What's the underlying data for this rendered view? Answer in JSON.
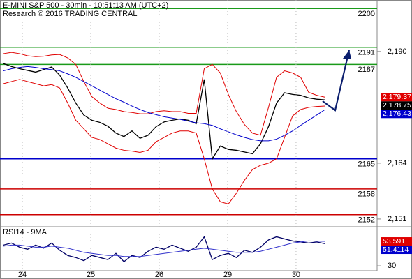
{
  "chart_data": [
    {
      "type": "line",
      "title": "E-MINI S&P 500 - 30min - 10:51:13 AM (UTC+2)",
      "subtitle": "Research © 2016 TRADING CENTRAL",
      "x": [
        0,
        1,
        2,
        3,
        4,
        5,
        6,
        7,
        8,
        9,
        10,
        11,
        12,
        13,
        14,
        15,
        16,
        17,
        18,
        19,
        20,
        21,
        22,
        23,
        24,
        25,
        26,
        27,
        28,
        29,
        30,
        31,
        32,
        33,
        34,
        35,
        36,
        37,
        38,
        39,
        40
      ],
      "xlim": [
        0,
        46
      ],
      "ylim": [
        2149.2,
        2202
      ],
      "yticks": [
        {
          "value": 2190,
          "label": "2,190"
        },
        {
          "value": 2164,
          "label": "2,164"
        },
        {
          "value": 2151,
          "label": "2,151"
        }
      ],
      "levels": [
        {
          "value": 2200,
          "color": "#1a9a1a"
        },
        {
          "value": 2191,
          "color": "#1a9a1a"
        },
        {
          "value": 2187,
          "color": "#1a9a1a"
        },
        {
          "value": 2165,
          "color": "#0000cc"
        },
        {
          "value": 2158,
          "color": "#cc0000"
        },
        {
          "value": 2152,
          "color": "#cc0000"
        }
      ],
      "series": [
        {
          "color": "#000000",
          "values": [
            2187.2,
            2186.5,
            2186.0,
            2185.6,
            2185.2,
            2185.8,
            2186.4,
            2184.5,
            2181.5,
            2178.0,
            2175.2,
            2174.0,
            2173.5,
            2172.6,
            2171.0,
            2170.2,
            2171.5,
            2169.8,
            2170.5,
            2172.5,
            2173.6,
            2174.0,
            2174.3,
            2174.0,
            2173.2,
            2183.5,
            2165.0,
            2168.0,
            2167.2,
            2167.0,
            2166.6,
            2166.2,
            2168.5,
            2172.5,
            2178.0,
            2180.4,
            2180.0,
            2179.8,
            2179.2,
            2178.9,
            2178.75
          ]
        },
        {
          "color": "#e00000",
          "values": [
            2189.5,
            2189.8,
            2189.5,
            2189.0,
            2188.8,
            2188.9,
            2189.2,
            2189.3,
            2188.5,
            2187.0,
            2183.0,
            2179.5,
            2178.0,
            2176.8,
            2176.5,
            2176.0,
            2175.8,
            2175.5,
            2175.5,
            2176.0,
            2176.2,
            2176.0,
            2176.0,
            2175.6,
            2175.6,
            2186.0,
            2187.0,
            2185.0,
            2180.0,
            2176.0,
            2173.0,
            2171.0,
            2170.5,
            2177.0,
            2184.0,
            2185.5,
            2185.0,
            2184.0,
            2180.5,
            2179.8,
            2179.37
          ]
        },
        {
          "color": "#e00000",
          "values": [
            2182.5,
            2183.0,
            2183.5,
            2183.0,
            2182.5,
            2182.0,
            2182.3,
            2181.5,
            2178.0,
            2174.0,
            2172.0,
            2170.0,
            2169.5,
            2168.5,
            2167.5,
            2167.0,
            2166.8,
            2166.5,
            2167.0,
            2169.0,
            2170.0,
            2171.0,
            2171.5,
            2171.5,
            2171.0,
            2165.0,
            2158.0,
            2155.0,
            2154.5,
            2157.0,
            2160.0,
            2162.5,
            2163.5,
            2164.0,
            2165.0,
            2170.0,
            2175.0,
            2176.5,
            2177.0,
            2177.2,
            2177.3
          ]
        },
        {
          "color": "#0000cc",
          "values": [
            2185.5,
            2186.0,
            2186.3,
            2186.5,
            2186.3,
            2186.0,
            2185.8,
            2185.5,
            2184.8,
            2184.0,
            2183.0,
            2182.0,
            2181.0,
            2180.0,
            2179.0,
            2178.2,
            2177.3,
            2176.5,
            2175.8,
            2175.3,
            2174.8,
            2174.5,
            2174.2,
            2173.8,
            2173.4,
            2173.2,
            2172.8,
            2172.0,
            2171.3,
            2170.6,
            2170.0,
            2169.5,
            2169.2,
            2169.2,
            2169.6,
            2170.5,
            2171.5,
            2172.8,
            2174.0,
            2175.2,
            2176.43
          ]
        }
      ],
      "last_labels": [
        {
          "value": 2179.37,
          "label": "2,179.37",
          "color": "#e00000"
        },
        {
          "value": 2178.75,
          "label": "2,178.75",
          "color": "#000000"
        },
        {
          "value": 2176.43,
          "label": "2,176.43",
          "color": "#0000cc"
        }
      ]
    },
    {
      "type": "line",
      "title": "RSI14 - 9MA",
      "x": [
        0,
        1,
        2,
        3,
        4,
        5,
        6,
        7,
        8,
        9,
        10,
        11,
        12,
        13,
        14,
        15,
        16,
        17,
        18,
        19,
        20,
        21,
        22,
        23,
        24,
        25,
        26,
        27,
        28,
        29,
        30,
        31,
        32,
        33,
        34,
        35,
        36,
        37,
        38,
        39,
        40
      ],
      "xlim": [
        0,
        46
      ],
      "xticks": [
        {
          "value": 2.35,
          "label": "24"
        },
        {
          "value": 10.87,
          "label": "25"
        },
        {
          "value": 19.39,
          "label": "26"
        },
        {
          "value": 27.91,
          "label": "29"
        },
        {
          "value": 36.43,
          "label": "30"
        }
      ],
      "ylim": [
        25,
        66
      ],
      "yticks": [
        30
      ],
      "series": [
        {
          "color": "#000066",
          "values": [
            50,
            52,
            48,
            46,
            50,
            47,
            52,
            45,
            40,
            38,
            35,
            40,
            38,
            36,
            42,
            34,
            40,
            38,
            44,
            48,
            46,
            50,
            47,
            44,
            48,
            58,
            36,
            40,
            42,
            38,
            45,
            43,
            48,
            55,
            58,
            56,
            54,
            53,
            52,
            53,
            51.4114
          ]
        },
        {
          "color": "#3333cc",
          "values": [
            49,
            50,
            50,
            49,
            48,
            48,
            49,
            48,
            47,
            45,
            43,
            42,
            41,
            40,
            40,
            39,
            39,
            39,
            40,
            41,
            42,
            43,
            44,
            45,
            46,
            47,
            46,
            45,
            44,
            43,
            43,
            43,
            44,
            46,
            48,
            50,
            52,
            53,
            54,
            53.8,
            53.591
          ]
        }
      ],
      "last_labels": [
        {
          "value": 53.591,
          "label": "53.591",
          "color": "#e00000"
        },
        {
          "value": 51.4114,
          "label": "51.4114",
          "color": "#0000cc"
        }
      ]
    }
  ]
}
